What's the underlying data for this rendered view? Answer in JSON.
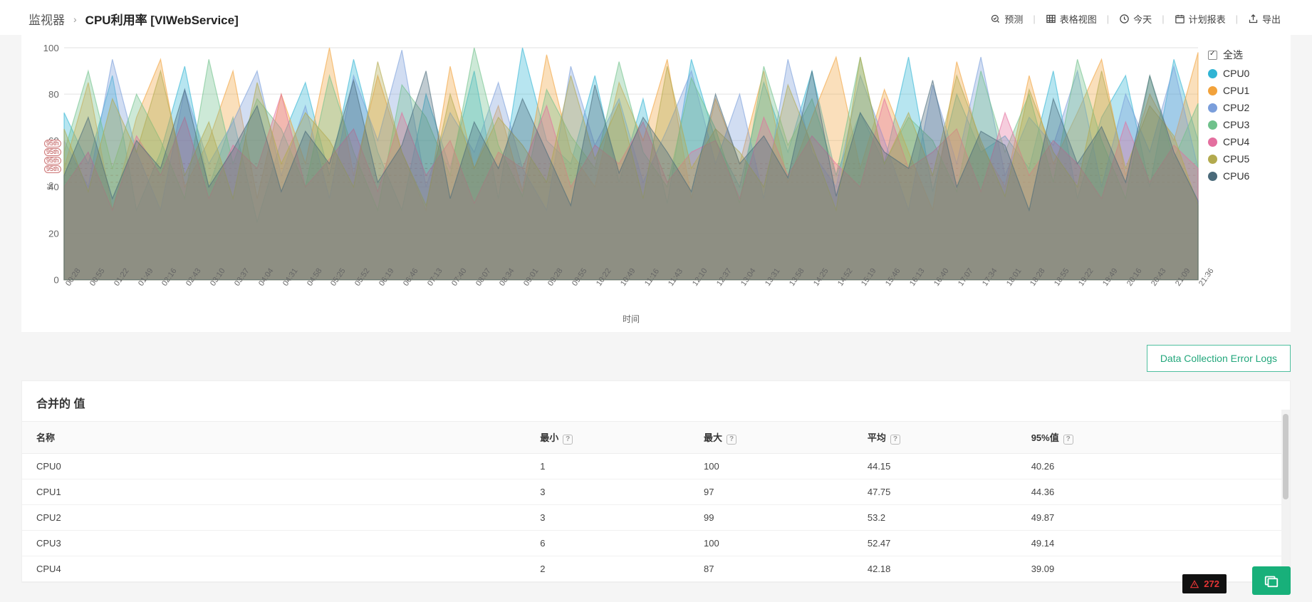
{
  "breadcrumb": {
    "parent": "监视器",
    "current": "CPU利用率 [VIWebService]"
  },
  "toolbar": {
    "forecast": "预测",
    "table_view": "表格视图",
    "today": "今天",
    "schedule": "计划报表",
    "export": "导出"
  },
  "chart": {
    "type": "area",
    "y_label_unit": "%",
    "x_label": "时间",
    "ylim": [
      0,
      100
    ],
    "ytick_step": 20,
    "grid_color": "#e8e8e8",
    "background": "#ffffff",
    "threshold_color": "#d9796e",
    "threshold_labels": [
      "95th",
      "95th",
      "95th",
      "95th"
    ],
    "threshold_values": [
      50,
      48,
      45,
      42
    ],
    "x_ticks": [
      "00:28",
      "00:55",
      "01:22",
      "01:49",
      "02:16",
      "02:43",
      "03:10",
      "03:37",
      "04:04",
      "04:31",
      "04:58",
      "05:25",
      "05:52",
      "06:19",
      "06:46",
      "07:13",
      "07:40",
      "08:07",
      "08:34",
      "09:01",
      "09:28",
      "09:55",
      "10:22",
      "10:49",
      "11:16",
      "11:43",
      "12:10",
      "12:37",
      "13:04",
      "13:31",
      "13:58",
      "14:25",
      "14:52",
      "15:19",
      "15:46",
      "16:13",
      "16:40",
      "17:07",
      "17:34",
      "18:01",
      "18:28",
      "18:55",
      "19:22",
      "19:49",
      "20:16",
      "20:43",
      "21:09",
      "21:36"
    ],
    "series": [
      {
        "name": "CPU0",
        "color": "#30b4d4",
        "values": [
          72,
          50,
          88,
          30,
          55,
          92,
          40,
          70,
          25,
          60,
          85,
          45,
          95,
          55,
          30,
          80,
          48,
          90,
          35,
          100,
          60,
          50,
          88,
          42,
          78,
          33,
          95,
          60,
          40,
          85,
          55,
          90,
          45,
          72,
          50,
          96,
          38,
          80,
          55,
          62,
          48,
          90,
          35,
          70,
          88,
          40,
          95,
          60
        ]
      },
      {
        "name": "CPU1",
        "color": "#f2a23b",
        "values": [
          48,
          85,
          30,
          70,
          95,
          40,
          60,
          90,
          35,
          80,
          50,
          100,
          45,
          88,
          55,
          30,
          92,
          48,
          75,
          38,
          97,
          55,
          40,
          85,
          60,
          95,
          35,
          78,
          50,
          90,
          42,
          70,
          96,
          48,
          82,
          55,
          30,
          94,
          58,
          40,
          88,
          50,
          72,
          95,
          45,
          80,
          60,
          98
        ]
      },
      {
        "name": "CPU2",
        "color": "#7a9edb",
        "values": [
          60,
          40,
          95,
          55,
          30,
          82,
          50,
          68,
          90,
          45,
          75,
          35,
          88,
          60,
          99,
          40,
          72,
          55,
          85,
          48,
          30,
          92,
          58,
          78,
          42,
          65,
          90,
          50,
          80,
          35,
          95,
          55,
          40,
          88,
          60,
          30,
          84,
          50,
          96,
          45,
          70,
          58,
          90,
          40,
          80,
          55,
          92,
          48
        ]
      },
      {
        "name": "CPU3",
        "color": "#6fc18b",
        "values": [
          55,
          90,
          48,
          80,
          60,
          35,
          95,
          50,
          78,
          65,
          40,
          88,
          55,
          30,
          84,
          70,
          45,
          100,
          58,
          36,
          82,
          62,
          48,
          94,
          55,
          40,
          87,
          65,
          33,
          92,
          58,
          78,
          45,
          96,
          50,
          70,
          60,
          38,
          90,
          55,
          80,
          42,
          95,
          60,
          35,
          88,
          52,
          76
        ]
      },
      {
        "name": "CPU4",
        "color": "#e46f9f",
        "values": [
          40,
          55,
          30,
          62,
          45,
          70,
          35,
          58,
          48,
          80,
          40,
          52,
          65,
          38,
          72,
          45,
          60,
          33,
          55,
          48,
          75,
          40,
          58,
          50,
          68,
          42,
          55,
          60,
          35,
          70,
          45,
          62,
          50,
          40,
          78,
          48,
          55,
          65,
          38,
          72,
          45,
          60,
          50,
          35,
          68,
          42,
          58,
          48
        ]
      },
      {
        "name": "CPU5",
        "color": "#b3aa4e",
        "values": [
          65,
          38,
          78,
          55,
          90,
          45,
          68,
          35,
          85,
          50,
          72,
          60,
          40,
          94,
          55,
          32,
          80,
          48,
          70,
          58,
          42,
          88,
          52,
          76,
          35,
          92,
          48,
          65,
          55,
          40,
          84,
          58,
          30,
          96,
          50,
          72,
          45,
          88,
          60,
          36,
          82,
          55,
          40,
          90,
          48,
          75,
          62,
          32
        ]
      },
      {
        "name": "CPU6",
        "color": "#4a6a7a",
        "values": [
          45,
          70,
          35,
          60,
          48,
          82,
          40,
          56,
          75,
          38,
          64,
          50,
          86,
          42,
          58,
          90,
          35,
          68,
          48,
          78,
          55,
          32,
          84,
          46,
          70,
          55,
          38,
          80,
          50,
          62,
          44,
          90,
          36,
          72,
          55,
          48,
          86,
          40,
          64,
          58,
          30,
          78,
          50,
          66,
          42,
          88,
          55,
          34
        ]
      }
    ],
    "legend_all": "全选"
  },
  "error_logs_btn": "Data Collection Error Logs",
  "table": {
    "title": "合并的 值",
    "columns": [
      "名称",
      "最小",
      "最大",
      "平均",
      "95%值"
    ],
    "rows": [
      [
        "CPU0",
        "1",
        "100",
        "44.15",
        "40.26"
      ],
      [
        "CPU1",
        "3",
        "97",
        "47.75",
        "44.36"
      ],
      [
        "CPU2",
        "3",
        "99",
        "53.2",
        "49.87"
      ],
      [
        "CPU3",
        "6",
        "100",
        "52.47",
        "49.14"
      ],
      [
        "CPU4",
        "2",
        "87",
        "42.18",
        "39.09"
      ]
    ]
  },
  "badge_count": "272"
}
